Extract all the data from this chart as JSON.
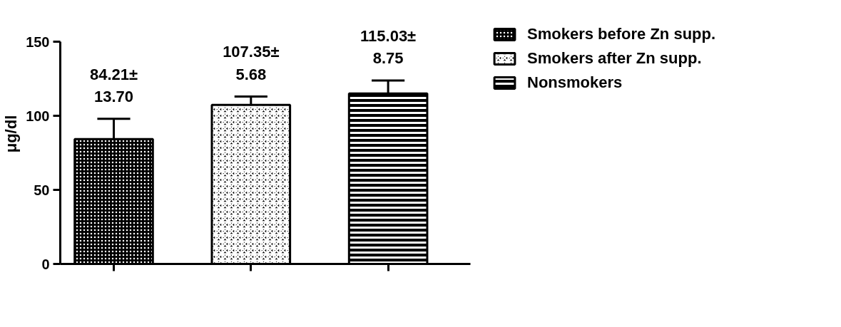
{
  "chart_data": {
    "type": "bar",
    "ylabel": "μg/dl",
    "categories": [
      null,
      null,
      null
    ],
    "series": [
      {
        "name": "Smokers before Zn supp.",
        "color": "#000000",
        "values": [
          84.21,
          null,
          null
        ],
        "errors": [
          13.7,
          null,
          null
        ],
        "value_labels": [
          "84.21±\n13.70",
          null,
          null
        ]
      },
      {
        "name": "Smokers after Zn supp.",
        "color": "#000000",
        "values": [
          null,
          107.35,
          null
        ],
        "errors": [
          null,
          5.68,
          null
        ],
        "value_labels": [
          null,
          "107.35±\n5.68",
          null
        ]
      },
      {
        "name": "Nonsmokers",
        "color": "#000000",
        "values": [
          null,
          null,
          115.03
        ],
        "errors": [
          null,
          null,
          8.75
        ],
        "value_labels": [
          null,
          null,
          "115.03±\n8.75"
        ]
      }
    ],
    "ylim": [
      0,
      150
    ],
    "yticks": [
      0,
      50,
      100,
      150
    ],
    "tick_labels": "y",
    "grid": false,
    "legend": "right"
  }
}
